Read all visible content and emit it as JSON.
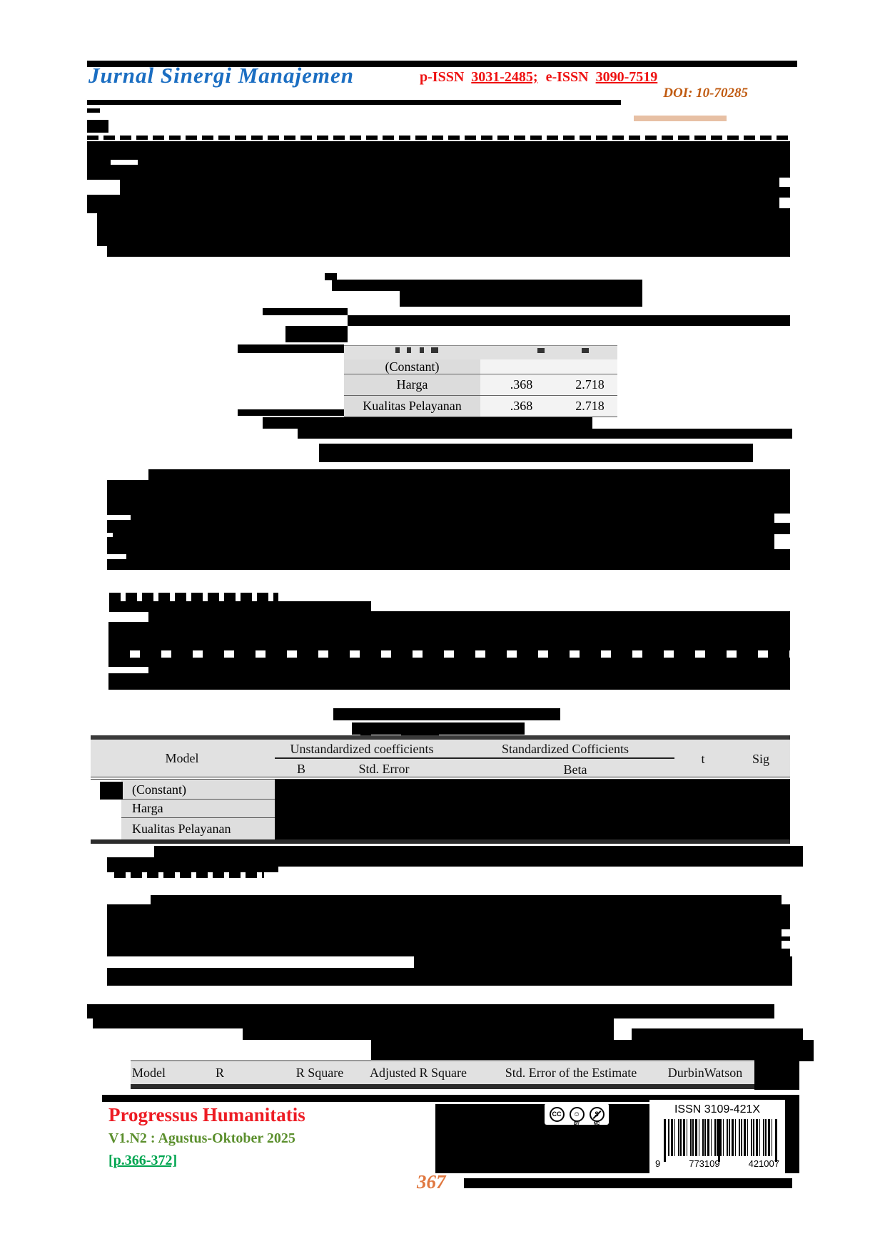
{
  "header": {
    "journal_title": "Jurnal Sinergi Manajemen",
    "p_issn_label": "p-ISSN",
    "p_issn_value": "3031-2485;",
    "e_issn_label": "e-ISSN",
    "e_issn_value": "3090-7519",
    "doi": "DOI: 10-70285"
  },
  "collinearity_table": {
    "rows": [
      {
        "label": "(Constant)",
        "tolerance": "",
        "vif": ""
      },
      {
        "label": "Harga",
        "tolerance": ".368",
        "vif": "2.718"
      },
      {
        "label": "Kualitas Pelayanan",
        "tolerance": ".368",
        "vif": "2.718"
      }
    ]
  },
  "coefficients_table": {
    "col_model": "Model",
    "col_unstandardized": "Unstandardized coefficients",
    "col_b": "B",
    "col_std_error": "Std. Error",
    "col_standardized": "Standardized Cofficients",
    "col_beta": "Beta",
    "col_t": "t",
    "col_sig": "Sig",
    "rows": [
      "(Constant)",
      "Harga",
      "Kualitas Pelayanan"
    ]
  },
  "model_summary_table": {
    "headers": [
      "Model",
      "R",
      "R Square",
      "Adjusted R Square",
      "Std. Error of the Estimate",
      "DurbinWatson"
    ]
  },
  "footer": {
    "journal_name": "Progressus Humanitatis",
    "issue_line": "V1.N2 : Agustus-Oktober 2025",
    "pages_line": "[p.366-372]",
    "cc_label": "CC",
    "by_label": "BY",
    "nc_label": "NC",
    "nc_symbol": "$",
    "issn_label": "ISSN 3109-421X",
    "barcode_digit_left": "9",
    "barcode_digit_mid": "773109",
    "barcode_digit_right": "421007",
    "page_number": "367"
  },
  "colors": {
    "title_blue": "#1b6ec2",
    "issn_red": "#ee1111",
    "doi_orange": "#c05a10",
    "footer_red": "#ed1c24",
    "issue_green": "#5b8f2d",
    "pages_green": "#00a550",
    "page_number_orange": "#e07840",
    "redaction_black": "#000000",
    "table_header_grey": "#e1e1e1"
  }
}
